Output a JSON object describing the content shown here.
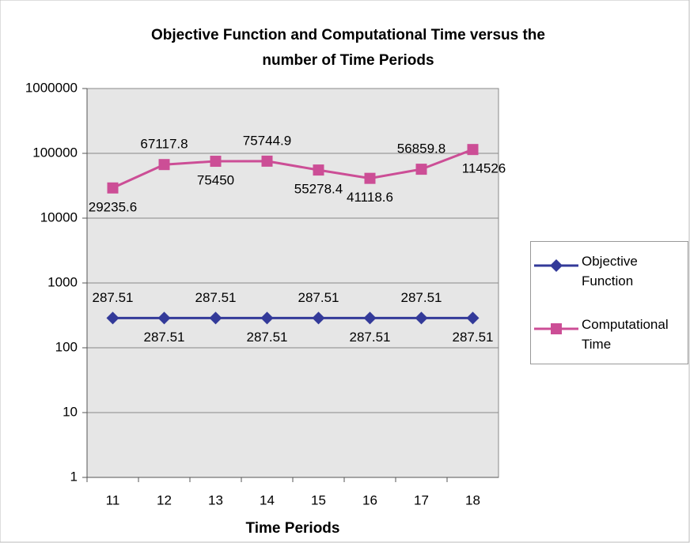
{
  "chart_data": {
    "type": "line",
    "title": [
      "Objective Function and Computational Time versus the",
      "number of Time Periods"
    ],
    "x_label": "Time Periods",
    "categories": [
      "11",
      "12",
      "13",
      "14",
      "15",
      "16",
      "17",
      "18"
    ],
    "series": [
      {
        "name": "Objective Function",
        "color": "#333a99",
        "marker": "diamond",
        "values": [
          287.51,
          287.51,
          287.51,
          287.51,
          287.51,
          287.51,
          287.51,
          287.51
        ]
      },
      {
        "name": "Computational Time",
        "color": "#cc4e96",
        "marker": "square",
        "values": [
          29235.6,
          67117.8,
          75450,
          75744.9,
          55278.4,
          41118.6,
          56859.8,
          114526
        ]
      }
    ],
    "ylim": [
      1,
      1000000
    ],
    "yticks": [
      1,
      10,
      100,
      1000,
      10000,
      100000,
      1000000
    ],
    "log_scale": true,
    "grid": true,
    "legend": "right"
  }
}
